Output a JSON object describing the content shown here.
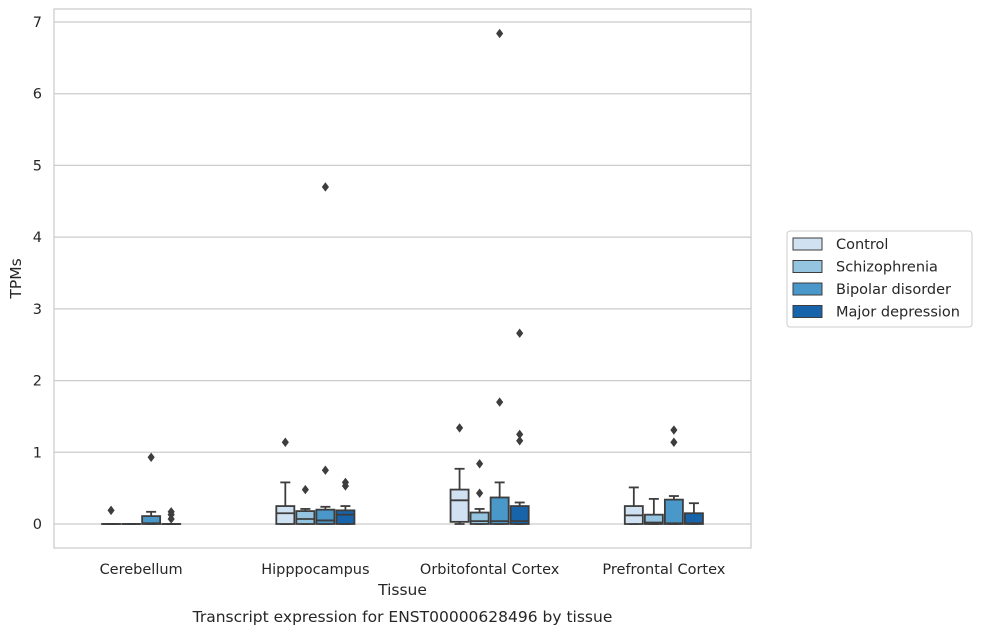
{
  "chart_data": {
    "type": "box",
    "title": "",
    "caption": "Transcript expression for ENST00000628496 by tissue",
    "xlabel": "Tissue",
    "ylabel": "TPMs",
    "ylim": [
      -0.33,
      7.2
    ],
    "yticks": [
      0,
      1,
      2,
      3,
      4,
      5,
      6,
      7
    ],
    "grid": "horizontal",
    "legend_position": "right",
    "categories": [
      "Cerebellum",
      "Hipppocampus",
      "Orbitofontal Cortex",
      "Prefrontal Cortex"
    ],
    "series": [
      {
        "name": "Control",
        "color": "#d0e1f2",
        "boxes": [
          {
            "q1": 0,
            "median": 0,
            "q3": 0,
            "whisker_low": 0,
            "whisker_high": 0,
            "outliers": [
              0.19
            ]
          },
          {
            "q1": 0,
            "median": 0.15,
            "q3": 0.25,
            "whisker_low": 0,
            "whisker_high": 0.58,
            "outliers": [
              1.14
            ]
          },
          {
            "q1": 0.03,
            "median": 0.33,
            "q3": 0.48,
            "whisker_low": 0,
            "whisker_high": 0.77,
            "outliers": [
              1.34
            ]
          },
          {
            "q1": 0,
            "median": 0.12,
            "q3": 0.25,
            "whisker_low": 0,
            "whisker_high": 0.51,
            "outliers": []
          }
        ]
      },
      {
        "name": "Schizophrenia",
        "color": "#94c4df",
        "boxes": [
          {
            "q1": 0,
            "median": 0,
            "q3": 0,
            "whisker_low": 0,
            "whisker_high": 0,
            "outliers": []
          },
          {
            "q1": 0,
            "median": 0.07,
            "q3": 0.18,
            "whisker_low": 0,
            "whisker_high": 0.21,
            "outliers": [
              0.48
            ]
          },
          {
            "q1": 0,
            "median": 0.04,
            "q3": 0.16,
            "whisker_low": 0,
            "whisker_high": 0.21,
            "outliers": [
              0.43,
              0.84
            ]
          },
          {
            "q1": 0,
            "median": 0.02,
            "q3": 0.13,
            "whisker_low": 0,
            "whisker_high": 0.35,
            "outliers": []
          }
        ]
      },
      {
        "name": "Bipolar disorder",
        "color": "#4a98c9",
        "boxes": [
          {
            "q1": 0,
            "median": 0.01,
            "q3": 0.11,
            "whisker_low": 0,
            "whisker_high": 0.17,
            "outliers": [
              0.93
            ]
          },
          {
            "q1": 0,
            "median": 0.05,
            "q3": 0.2,
            "whisker_low": 0,
            "whisker_high": 0.24,
            "outliers": [
              0.75,
              4.7
            ]
          },
          {
            "q1": 0,
            "median": 0.04,
            "q3": 0.37,
            "whisker_low": 0,
            "whisker_high": 0.58,
            "outliers": [
              1.7,
              6.84
            ]
          },
          {
            "q1": 0,
            "median": 0.01,
            "q3": 0.34,
            "whisker_low": 0,
            "whisker_high": 0.39,
            "outliers": [
              1.14,
              1.31
            ]
          }
        ]
      },
      {
        "name": "Major depression",
        "color": "#1764ab",
        "boxes": [
          {
            "q1": 0,
            "median": 0,
            "q3": 0,
            "whisker_low": 0,
            "whisker_high": 0,
            "outliers": [
              0.07,
              0.13,
              0.17
            ]
          },
          {
            "q1": 0,
            "median": 0.13,
            "q3": 0.19,
            "whisker_low": 0,
            "whisker_high": 0.25,
            "outliers": [
              0.53,
              0.58
            ]
          },
          {
            "q1": 0,
            "median": 0.04,
            "q3": 0.25,
            "whisker_low": 0,
            "whisker_high": 0.3,
            "outliers": [
              1.16,
              1.25,
              2.66
            ]
          },
          {
            "q1": 0,
            "median": 0.01,
            "q3": 0.15,
            "whisker_low": 0,
            "whisker_high": 0.29,
            "outliers": []
          }
        ]
      }
    ]
  }
}
